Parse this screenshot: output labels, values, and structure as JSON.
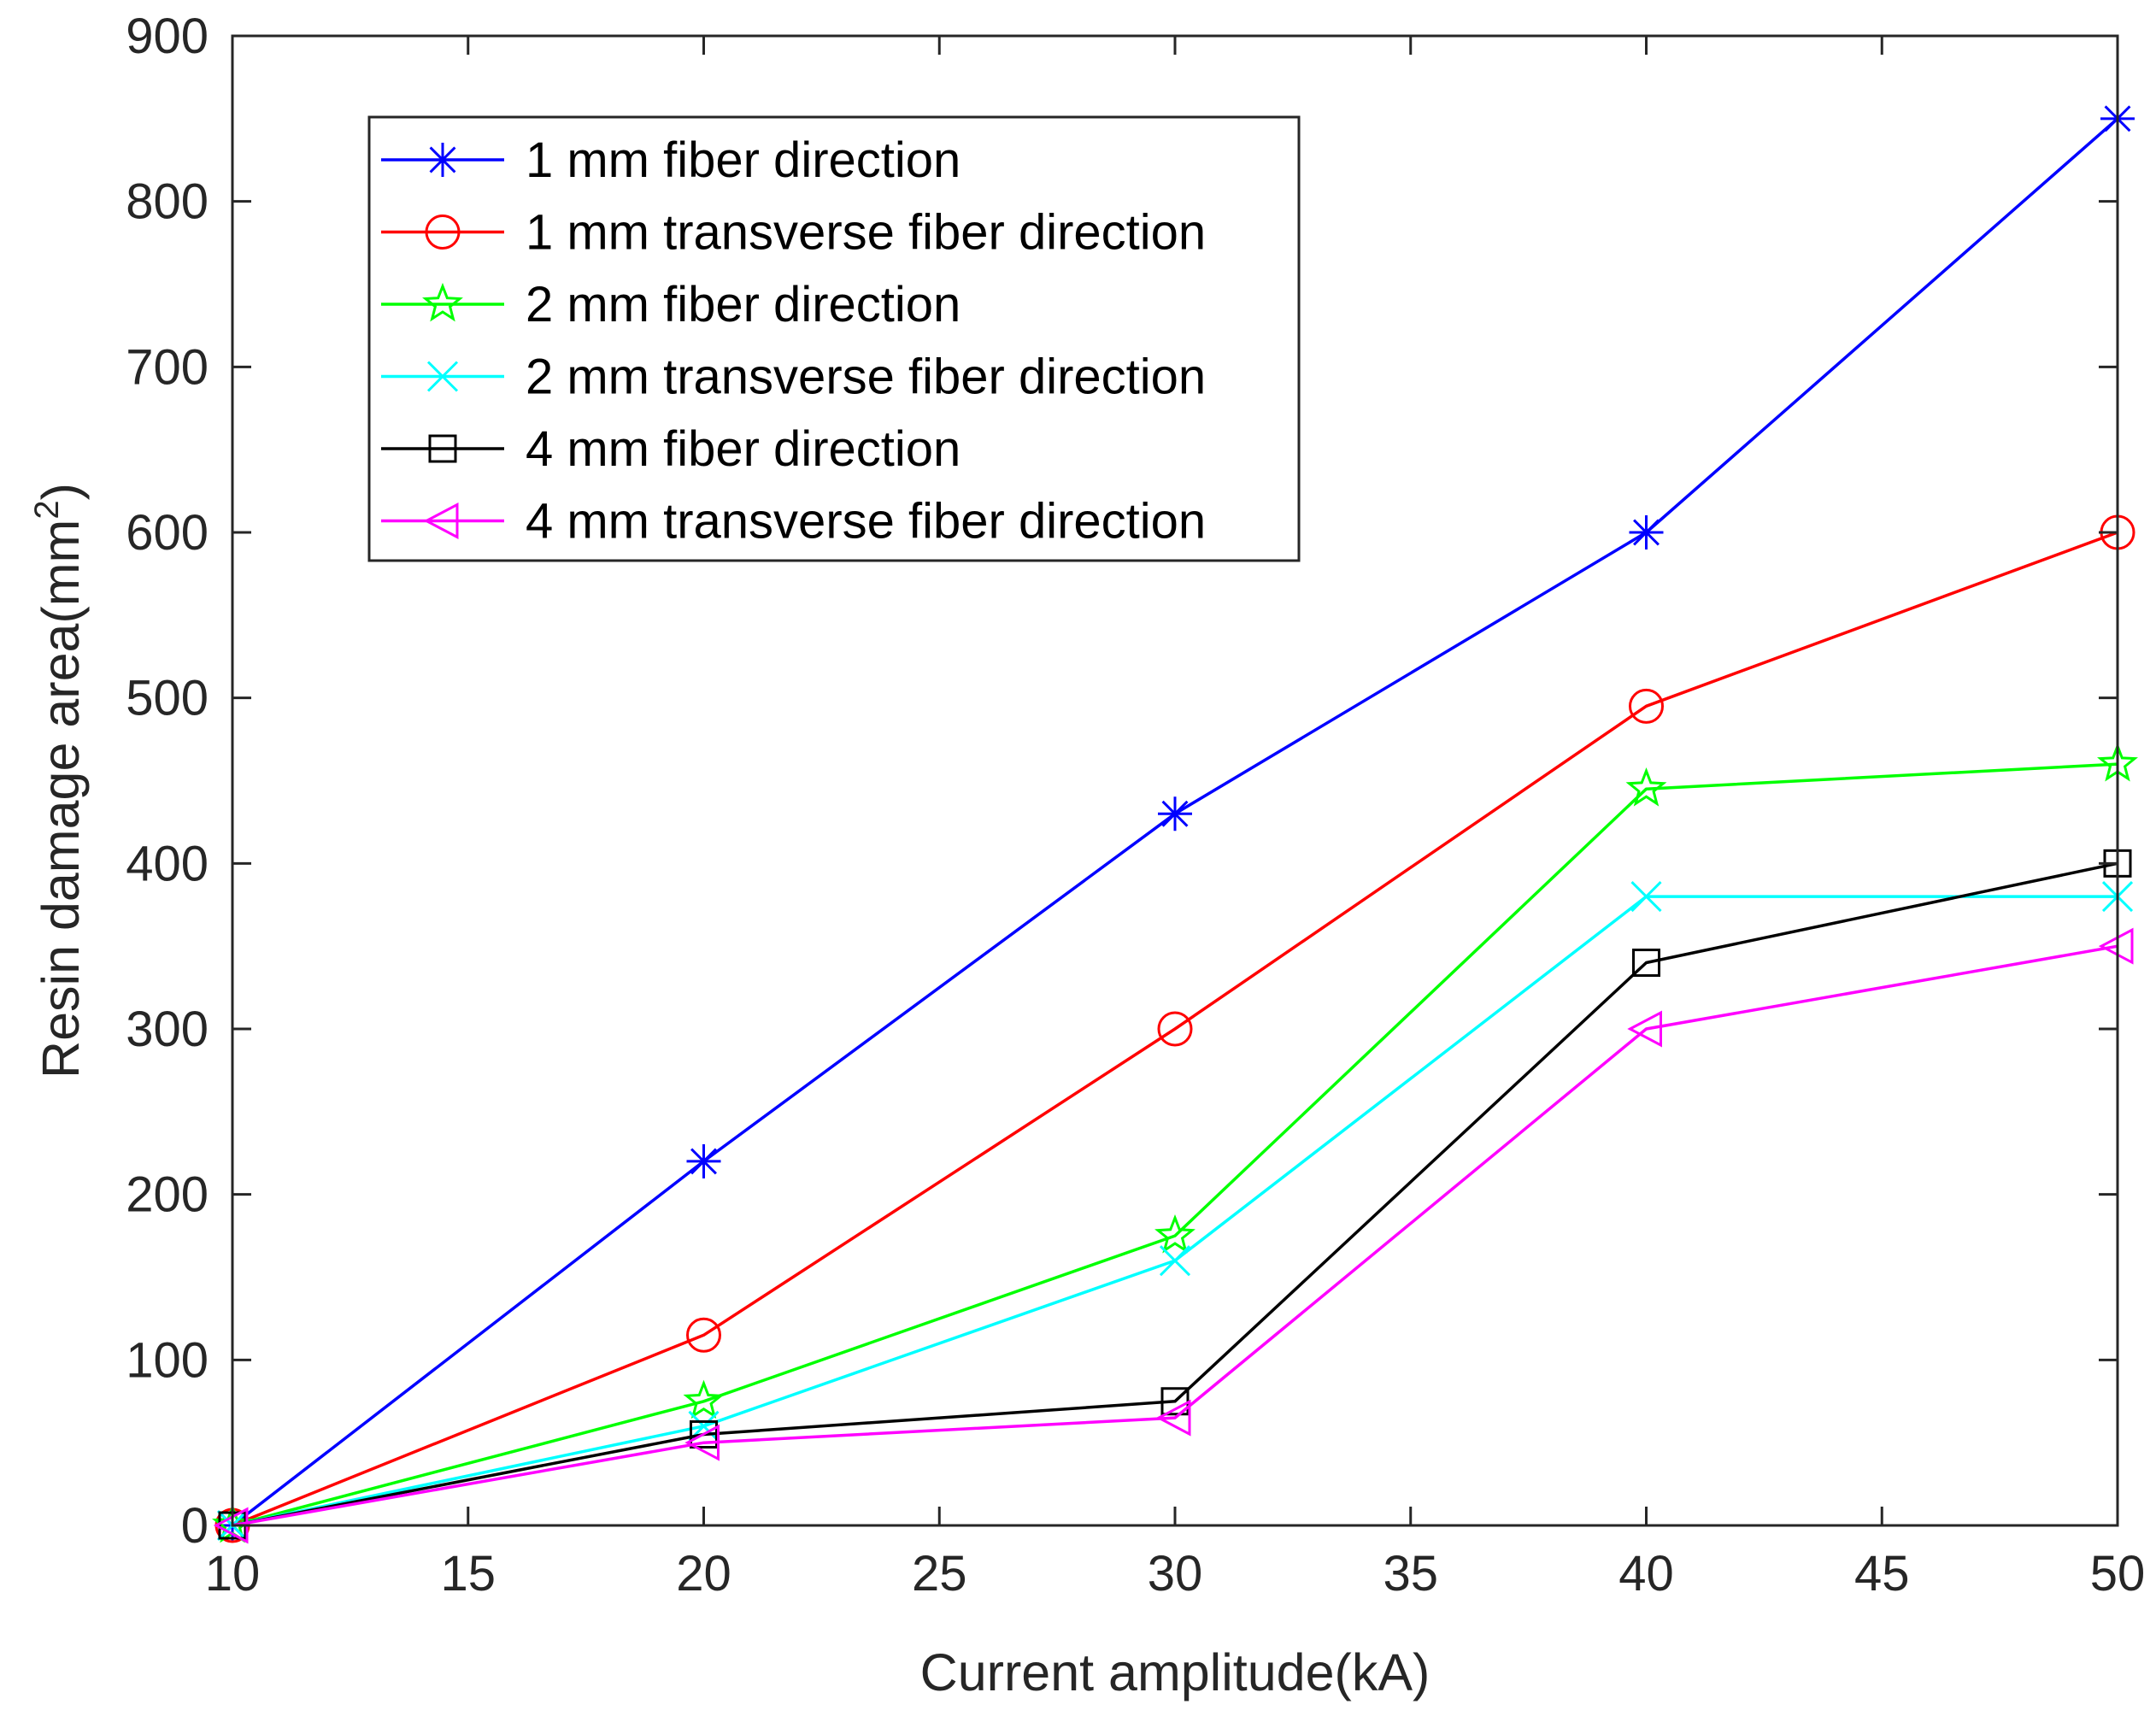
{
  "chart_data": {
    "type": "line",
    "title": "",
    "xlabel": "Current amplitude(kA)",
    "ylabel_main": "Resin damage area(mm",
    "ylabel_sup": "2",
    "ylabel_close": ")",
    "xlim": [
      10,
      50
    ],
    "ylim": [
      0,
      900
    ],
    "xticks": [
      10,
      15,
      20,
      25,
      30,
      35,
      40,
      45,
      50
    ],
    "yticks": [
      0,
      100,
      200,
      300,
      400,
      500,
      600,
      700,
      800,
      900
    ],
    "grid": false,
    "legend_position": "top-left",
    "x": [
      10,
      20,
      30,
      40,
      50
    ],
    "series": [
      {
        "name": "1 mm fiber direction",
        "color": "#0000ff",
        "marker": "asterisk",
        "values": [
          0,
          220,
          430,
          600,
          850
        ]
      },
      {
        "name": "1 mm transverse fiber direction",
        "color": "#ff0000",
        "marker": "circle",
        "values": [
          0,
          115,
          300,
          495,
          600
        ]
      },
      {
        "name": "2 mm fiber direction",
        "color": "#00ff00",
        "marker": "pentagram",
        "values": [
          0,
          75,
          175,
          445,
          460
        ]
      },
      {
        "name": "2 mm transverse fiber direction",
        "color": "#00ffff",
        "marker": "x",
        "values": [
          0,
          60,
          160,
          380,
          380
        ]
      },
      {
        "name": "4 mm fiber direction",
        "color": "#000000",
        "marker": "square",
        "values": [
          0,
          55,
          75,
          340,
          400
        ]
      },
      {
        "name": "4 mm transverse fiber direction",
        "color": "#ff00ff",
        "marker": "triangle-left",
        "values": [
          0,
          50,
          65,
          300,
          350
        ]
      }
    ]
  }
}
